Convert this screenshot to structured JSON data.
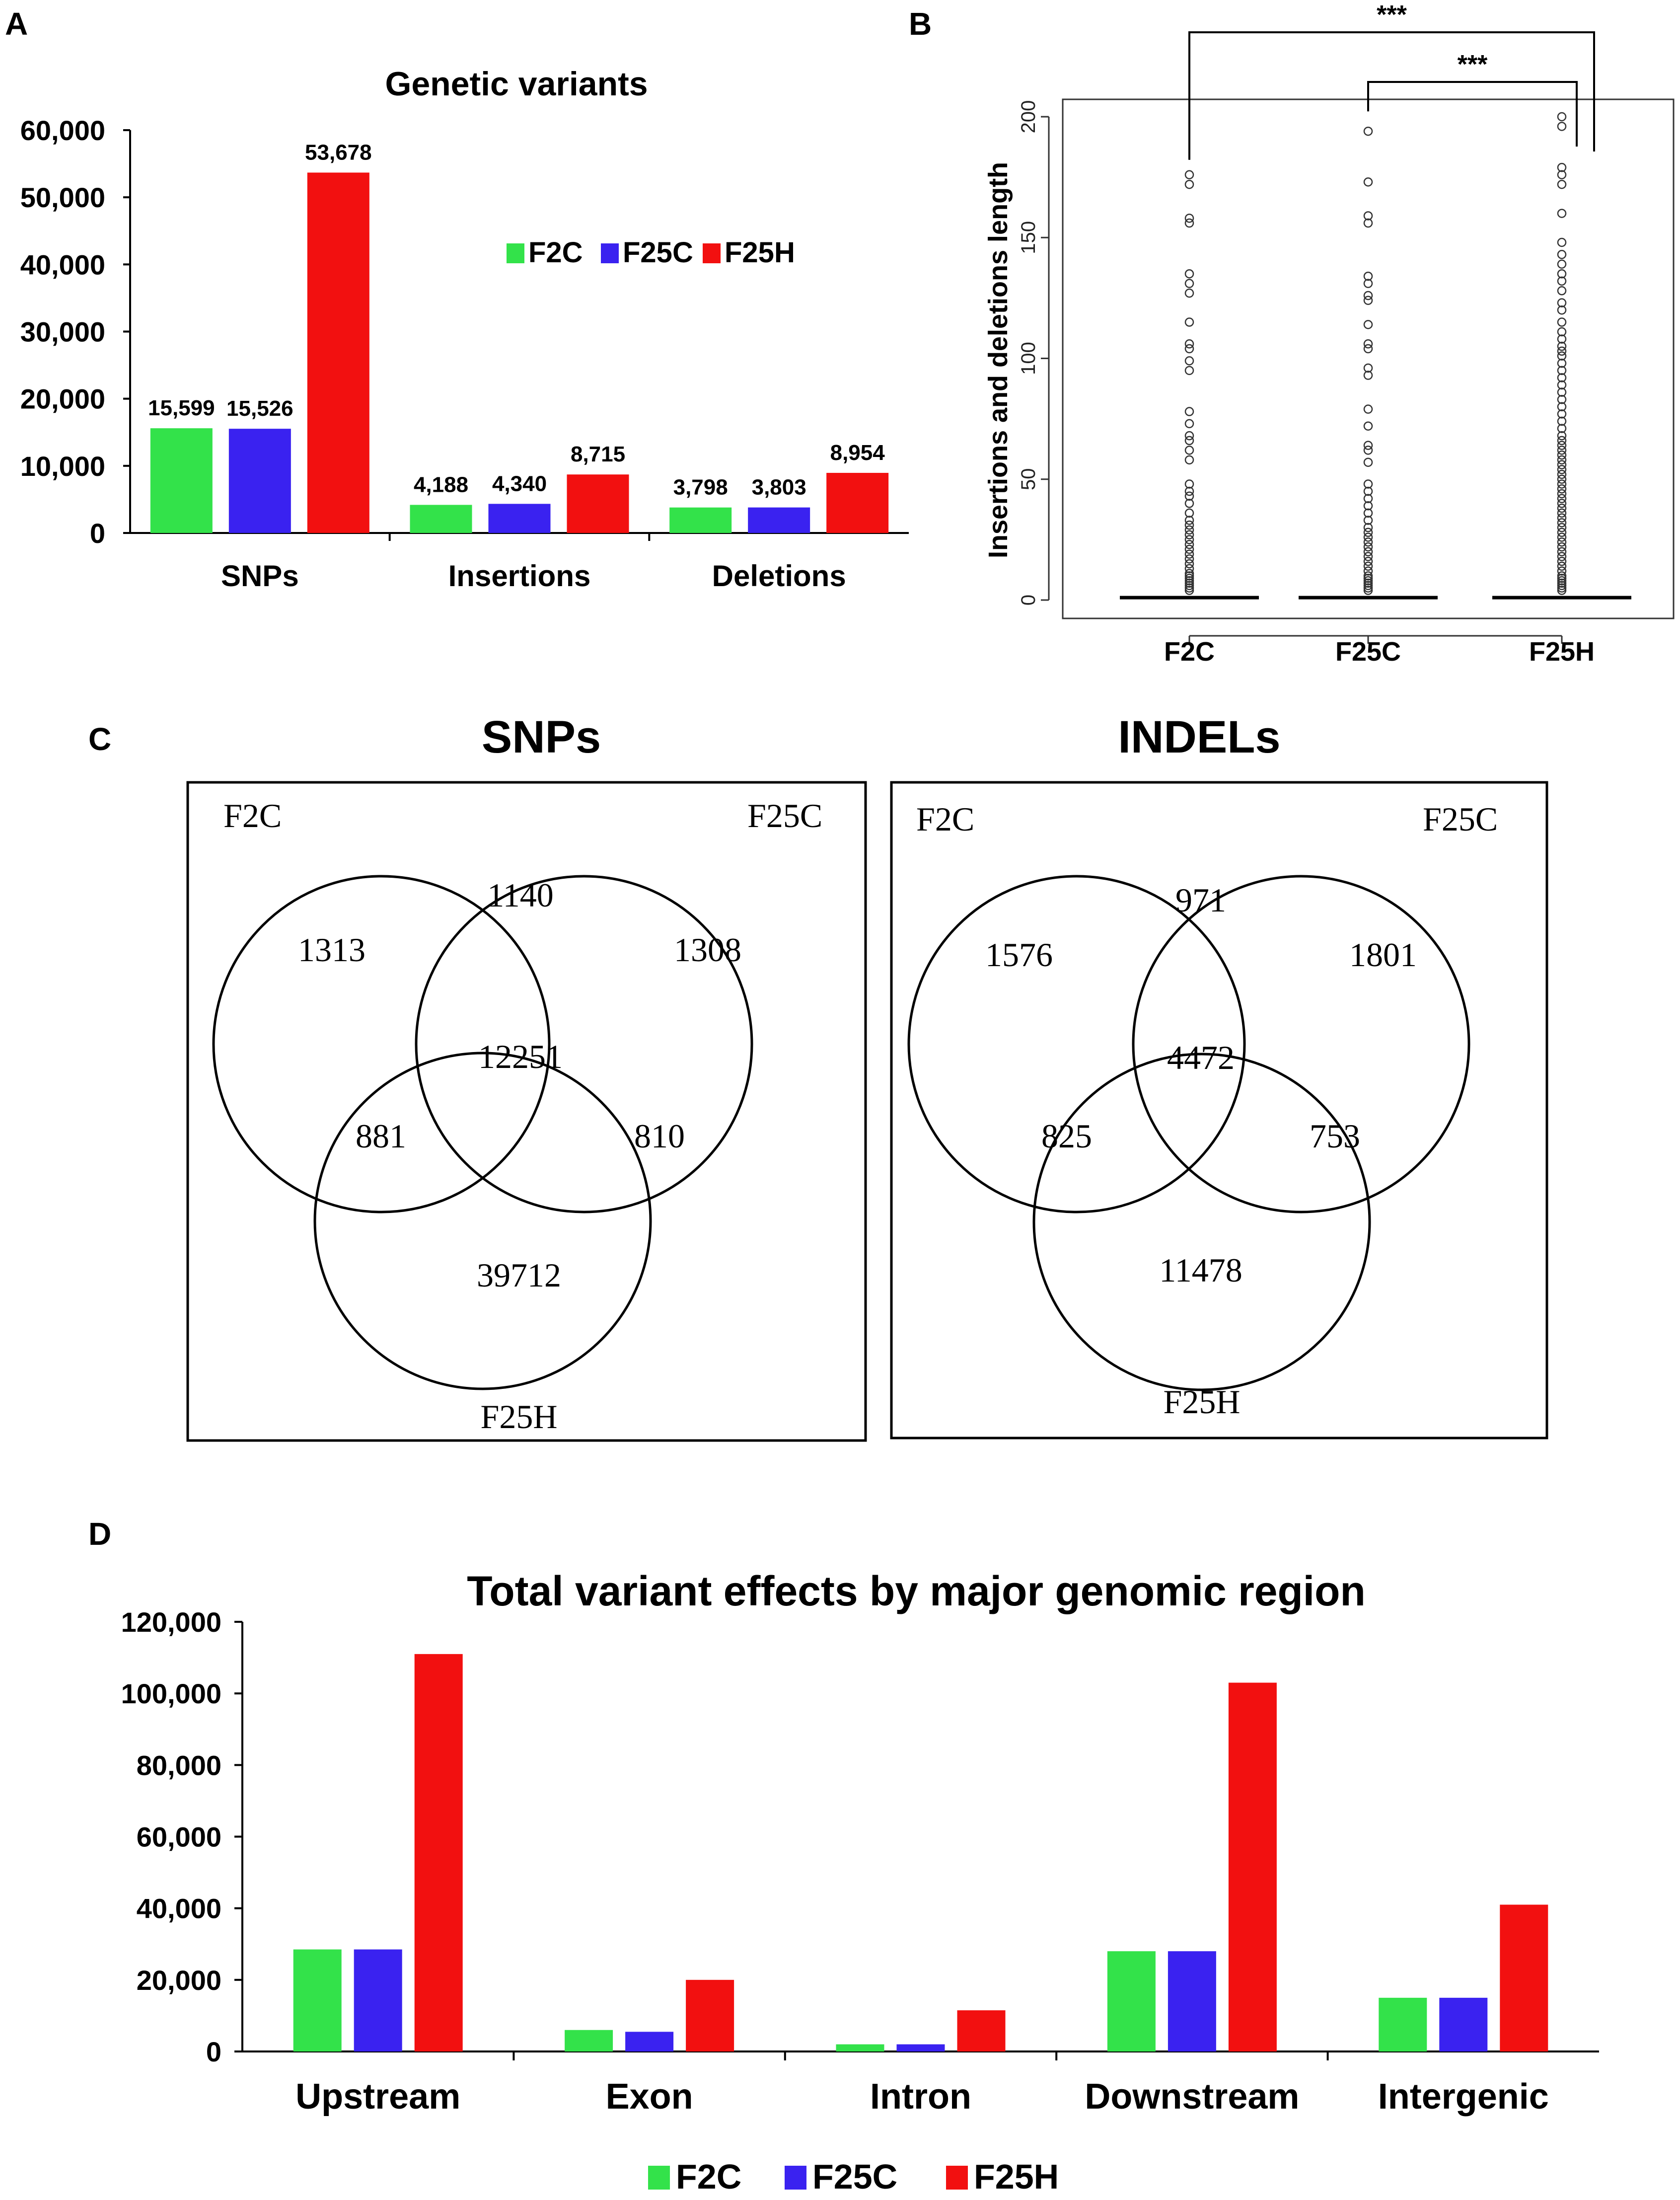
{
  "colors": {
    "F2C": "#33e24a",
    "F25C": "#3a22f0",
    "F25H": "#f21010",
    "axis": "#000000"
  },
  "panel_labels": {
    "a": "A",
    "b": "B",
    "c": "C",
    "d": "D"
  },
  "chart_data": [
    {
      "id": "A",
      "type": "bar",
      "title": "Genetic variants",
      "categories": [
        "SNPs",
        "Insertions",
        "Deletions"
      ],
      "series": [
        {
          "name": "F2C",
          "values": [
            15599,
            4188,
            3798
          ],
          "labels": [
            "15,599",
            "4,188",
            "3,798"
          ]
        },
        {
          "name": "F25C",
          "values": [
            15526,
            4340,
            3803
          ],
          "labels": [
            "15,526",
            "4,340",
            "3,803"
          ]
        },
        {
          "name": "F25H",
          "values": [
            53678,
            8715,
            8954
          ],
          "labels": [
            "53,678",
            "8,715",
            "8,954"
          ]
        }
      ],
      "ylim": [
        0,
        60000
      ],
      "yticks": [
        "0",
        "10,000",
        "20,000",
        "30,000",
        "40,000",
        "50,000",
        "60,000"
      ],
      "legend": [
        "F2C",
        "F25C",
        "F25H"
      ],
      "legend_position": "top-right",
      "xlabel": "",
      "ylabel": ""
    },
    {
      "id": "B",
      "type": "scatter",
      "subtype": "boxplot",
      "ylabel": "Insertions and deletions length",
      "categories": [
        "F2C",
        "F25C",
        "F25H"
      ],
      "ylim": [
        0,
        200
      ],
      "yticks": [
        "0",
        "50",
        "100",
        "150",
        "200"
      ],
      "median": [
        1,
        1,
        1
      ],
      "outliers": [
        [
          176,
          172,
          158,
          156,
          135,
          131,
          127,
          115,
          106,
          104,
          99,
          95,
          78,
          73,
          68,
          66,
          62,
          58,
          48,
          45,
          43,
          40,
          36,
          33,
          31,
          29,
          27,
          25,
          23,
          21,
          19,
          17,
          15,
          13,
          11,
          10,
          9,
          8,
          7,
          6,
          5,
          4
        ],
        [
          194,
          173,
          159,
          156,
          134,
          131,
          126,
          124,
          114,
          106,
          104,
          96,
          93,
          79,
          72,
          64,
          62,
          57,
          48,
          45,
          42,
          39,
          36,
          33,
          30,
          28,
          26,
          24,
          22,
          20,
          18,
          16,
          14,
          12,
          10,
          9,
          8,
          7,
          6,
          5,
          4
        ],
        [
          200,
          196,
          179,
          176,
          172,
          160,
          148,
          143,
          139,
          135,
          132,
          128,
          123,
          120,
          115,
          111,
          108,
          105,
          103,
          101,
          98,
          95,
          92,
          89,
          86,
          83,
          80,
          77,
          74,
          71,
          68,
          66,
          64,
          62,
          60,
          58,
          56,
          54,
          52,
          50,
          48,
          46,
          44,
          42,
          40,
          38,
          36,
          34,
          32,
          30,
          28,
          26,
          24,
          22,
          20,
          18,
          16,
          14,
          12,
          10,
          9,
          8,
          7,
          6,
          5,
          4
        ]
      ],
      "significance": [
        {
          "from": "F2C",
          "to": "F25H",
          "label": "***"
        },
        {
          "from": "F25C",
          "to": "F25H",
          "label": "***"
        }
      ]
    },
    {
      "id": "C",
      "type": "venn",
      "diagrams": [
        {
          "title": "SNPs",
          "sets": [
            "F2C",
            "F25C",
            "F25H"
          ],
          "regions": {
            "only_a": "1313",
            "ab": "1140",
            "only_b": "1308",
            "abc": "12251",
            "ac": "881",
            "bc": "810",
            "only_c": "39712"
          }
        },
        {
          "title": "INDELs",
          "sets": [
            "F2C",
            "F25C",
            "F25H"
          ],
          "regions": {
            "only_a": "1576",
            "ab": "971",
            "only_b": "1801",
            "abc": "4472",
            "ac": "825",
            "bc": "753",
            "only_c": "11478"
          }
        }
      ]
    },
    {
      "id": "D",
      "type": "bar",
      "title": "Total variant effects by major genomic region",
      "categories": [
        "Upstream",
        "Exon",
        "Intron",
        "Downstream",
        "Intergenic"
      ],
      "series": [
        {
          "name": "F2C",
          "values": [
            28500,
            6000,
            2000,
            28000,
            15000
          ]
        },
        {
          "name": "F25C",
          "values": [
            28500,
            5500,
            2000,
            28000,
            15000
          ]
        },
        {
          "name": "F25H",
          "values": [
            111000,
            20000,
            11500,
            103000,
            41000
          ]
        }
      ],
      "ylim": [
        0,
        120000
      ],
      "yticks": [
        "0",
        "20,000",
        "40,000",
        "60,000",
        "80,000",
        "100,000",
        "120,000"
      ],
      "legend": [
        "F2C",
        "F25C",
        "F25H"
      ],
      "legend_position": "bottom",
      "xlabel": "",
      "ylabel": ""
    }
  ]
}
